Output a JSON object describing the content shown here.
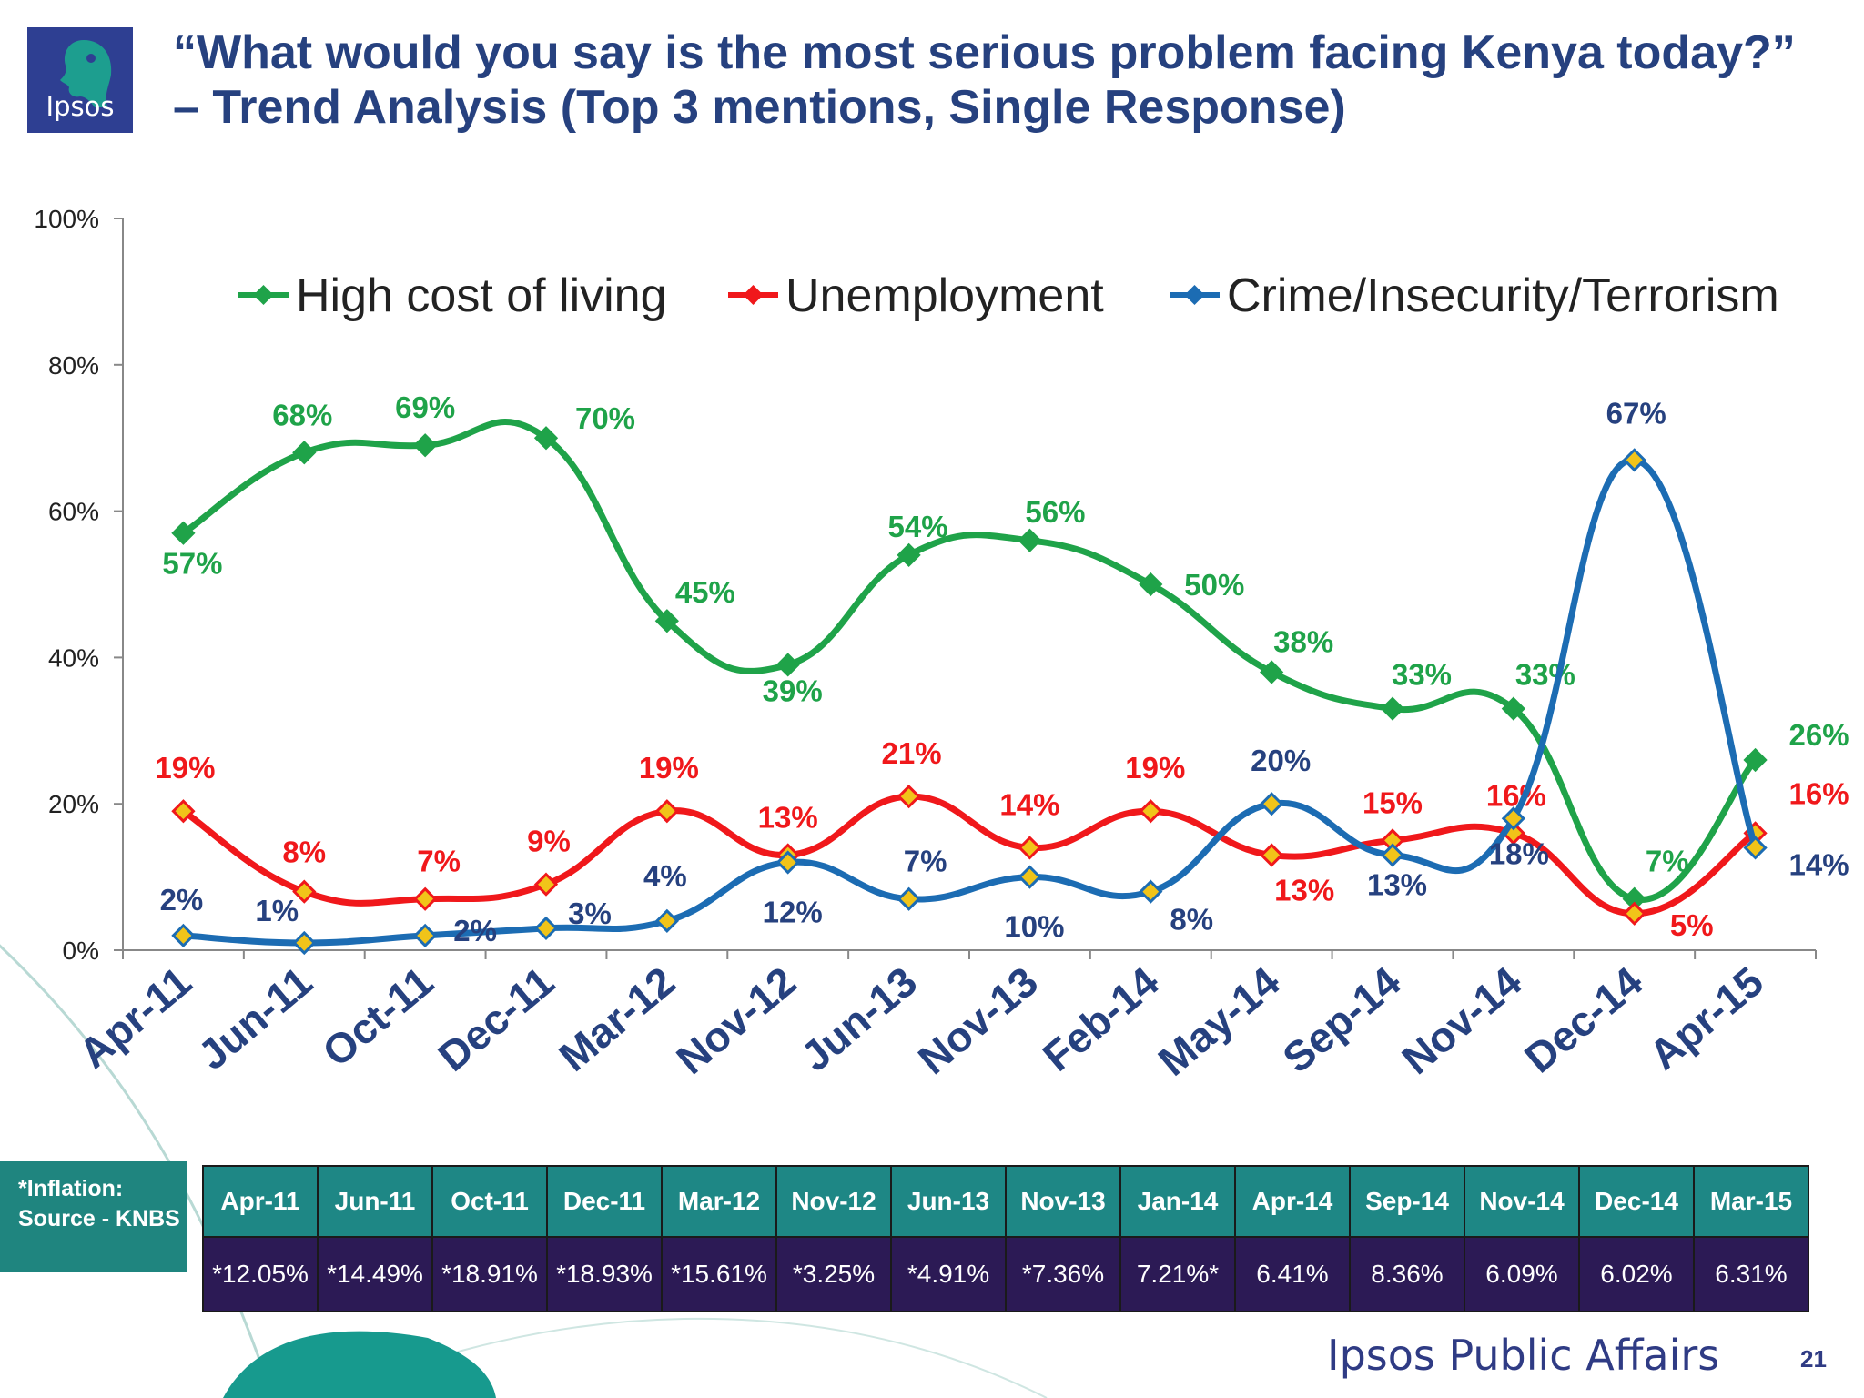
{
  "logo": {
    "text": "Ipsos"
  },
  "title": "“What would you say is the most serious problem facing Kenya today?” – Trend Analysis (Top 3 mentions, Single Response)",
  "chart_data": {
    "type": "line",
    "x": [
      "Apr-11",
      "Jun-11",
      "Oct-11",
      "Dec-11",
      "Mar-12",
      "Nov-12",
      "Jun-13",
      "Nov-13",
      "Feb-14",
      "May-14",
      "Sep-14",
      "Nov-14",
      "Dec-14",
      "Apr-15"
    ],
    "yticks": [
      "0%",
      "20%",
      "40%",
      "60%",
      "80%",
      "100%"
    ],
    "ylim": [
      0,
      100
    ],
    "legend_position": "top",
    "series": [
      {
        "name": "High cost of living",
        "color": "#1fa349",
        "values": [
          57,
          68,
          69,
          70,
          45,
          39,
          54,
          56,
          50,
          38,
          33,
          33,
          7,
          26
        ],
        "labels": [
          "57%",
          "68%",
          "69%",
          "70%",
          "45%",
          "39%",
          "54%",
          "56%",
          "50%",
          "38%",
          "33%",
          "33%",
          "7%",
          "26%"
        ]
      },
      {
        "name": "Unemployment",
        "color": "#f0181b",
        "values": [
          19,
          8,
          7,
          9,
          19,
          13,
          21,
          14,
          19,
          13,
          15,
          16,
          5,
          16
        ],
        "labels": [
          "19%",
          "8%",
          "7%",
          "9%",
          "19%",
          "13%",
          "21%",
          "14%",
          "19%",
          "13%",
          "15%",
          "16%",
          "5%",
          "16%"
        ]
      },
      {
        "name": "Crime/Insecurity/Terrorism",
        "color": "#1c6cb3",
        "values": [
          2,
          1,
          2,
          3,
          4,
          12,
          7,
          10,
          8,
          20,
          13,
          18,
          67,
          14
        ],
        "labels": [
          "2%",
          "1%",
          "2%",
          "3%",
          "4%",
          "12%",
          "7%",
          "10%",
          "8%",
          "20%",
          "13%",
          "18%",
          "67%",
          "14%"
        ]
      }
    ]
  },
  "inflation": {
    "label": "*Inflation: Source - KNBS",
    "months": [
      "Apr-11",
      "Jun-11",
      "Oct-11",
      "Dec-11",
      "Mar-12",
      "Nov-12",
      "Jun-13",
      "Nov-13",
      "Jan-14",
      "Apr-14",
      "Sep-14",
      "Nov-14",
      "Dec-14",
      "Mar-15"
    ],
    "values": [
      "*12.05%",
      "*14.49%",
      "*18.91%",
      "*18.93%",
      "*15.61%",
      "*3.25%",
      "*4.91%",
      "*7.36%",
      "7.21%*",
      "6.41%",
      "8.36%",
      "6.09%",
      "6.02%",
      "6.31%"
    ]
  },
  "footer": {
    "brand": "Ipsos Public Affairs",
    "page": "21"
  }
}
